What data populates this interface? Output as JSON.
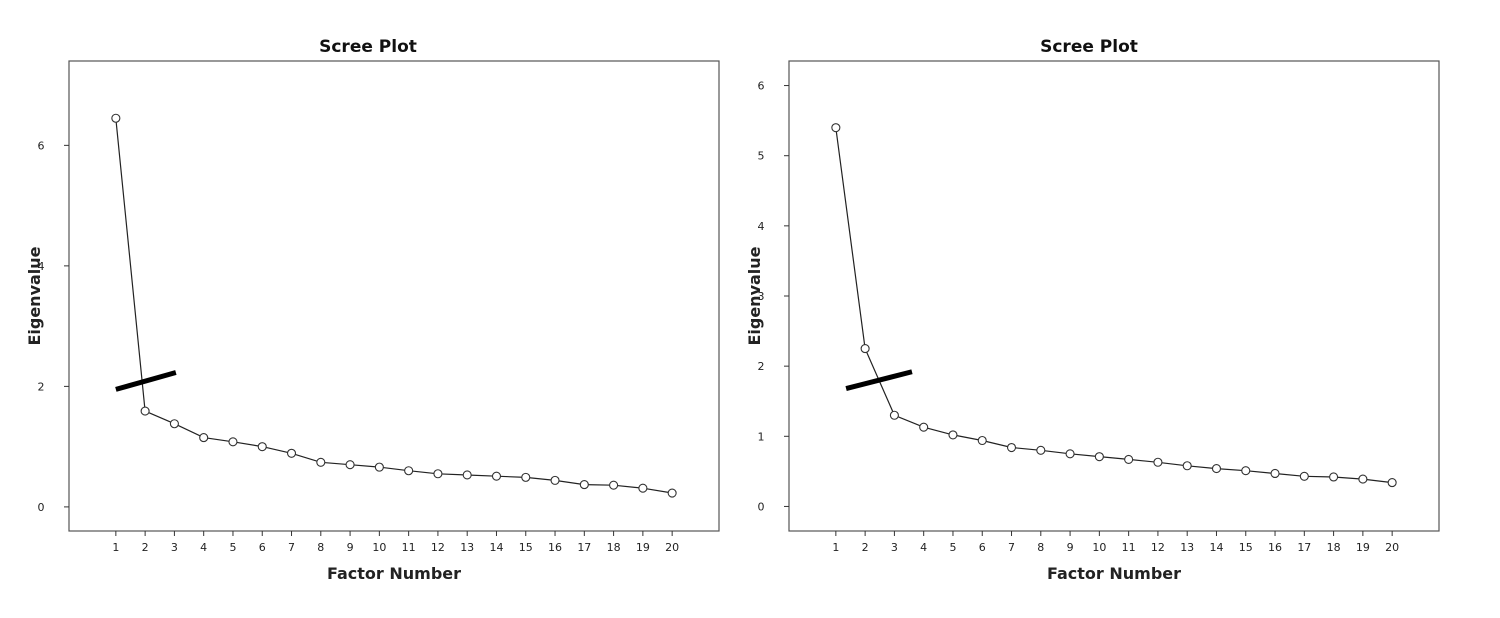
{
  "chart_data": [
    {
      "type": "line",
      "title": "Scree Plot",
      "xlabel": "Factor Number",
      "ylabel": "Eigenvalue",
      "x": [
        1,
        2,
        3,
        4,
        5,
        6,
        7,
        8,
        9,
        10,
        11,
        12,
        13,
        14,
        15,
        16,
        17,
        18,
        19,
        20
      ],
      "x_ticks": [
        "1",
        "2",
        "3",
        "4",
        "5",
        "6",
        "7",
        "8",
        "9",
        "10",
        "11",
        "12",
        "13",
        "14",
        "15",
        "16",
        "17",
        "18",
        "19",
        "20"
      ],
      "y_ticks": [
        "0",
        "2",
        "4",
        "6"
      ],
      "y_tick_values": [
        0,
        2,
        4,
        6
      ],
      "xlim": [
        -0.6,
        21.6
      ],
      "ylim": [
        -0.4,
        7.4
      ],
      "series": [
        {
          "values": [
            6.45,
            1.59,
            1.38,
            1.15,
            1.08,
            1.0,
            0.89,
            0.74,
            0.7,
            0.66,
            0.6,
            0.55,
            0.53,
            0.51,
            0.49,
            0.44,
            0.37,
            0.36,
            0.31,
            0.23
          ]
        }
      ],
      "elbow_marker": {
        "from": [
          1.0,
          1.95
        ],
        "to": [
          3.05,
          2.23
        ]
      },
      "grid": false,
      "marker": "open-circle"
    },
    {
      "type": "line",
      "title": "Scree Plot",
      "xlabel": "Factor Number",
      "ylabel": "Eigenvalue",
      "x": [
        1,
        2,
        3,
        4,
        5,
        6,
        7,
        8,
        9,
        10,
        11,
        12,
        13,
        14,
        15,
        16,
        17,
        18,
        19,
        20
      ],
      "x_ticks": [
        "1",
        "2",
        "3",
        "4",
        "5",
        "6",
        "7",
        "8",
        "9",
        "10",
        "11",
        "12",
        "13",
        "14",
        "15",
        "16",
        "17",
        "18",
        "19",
        "20"
      ],
      "y_ticks": [
        "0",
        "1",
        "2",
        "3",
        "4",
        "5",
        "6"
      ],
      "y_tick_values": [
        0,
        1,
        2,
        3,
        4,
        5,
        6
      ],
      "xlim": [
        -0.6,
        21.6
      ],
      "ylim": [
        -0.35,
        6.35
      ],
      "series": [
        {
          "values": [
            5.4,
            2.25,
            1.3,
            1.13,
            1.02,
            0.94,
            0.84,
            0.8,
            0.75,
            0.71,
            0.67,
            0.63,
            0.58,
            0.54,
            0.51,
            0.47,
            0.43,
            0.42,
            0.39,
            0.34
          ]
        }
      ],
      "elbow_marker": {
        "from": [
          1.35,
          1.68
        ],
        "to": [
          3.6,
          1.92
        ]
      },
      "grid": false,
      "marker": "open-circle"
    }
  ]
}
